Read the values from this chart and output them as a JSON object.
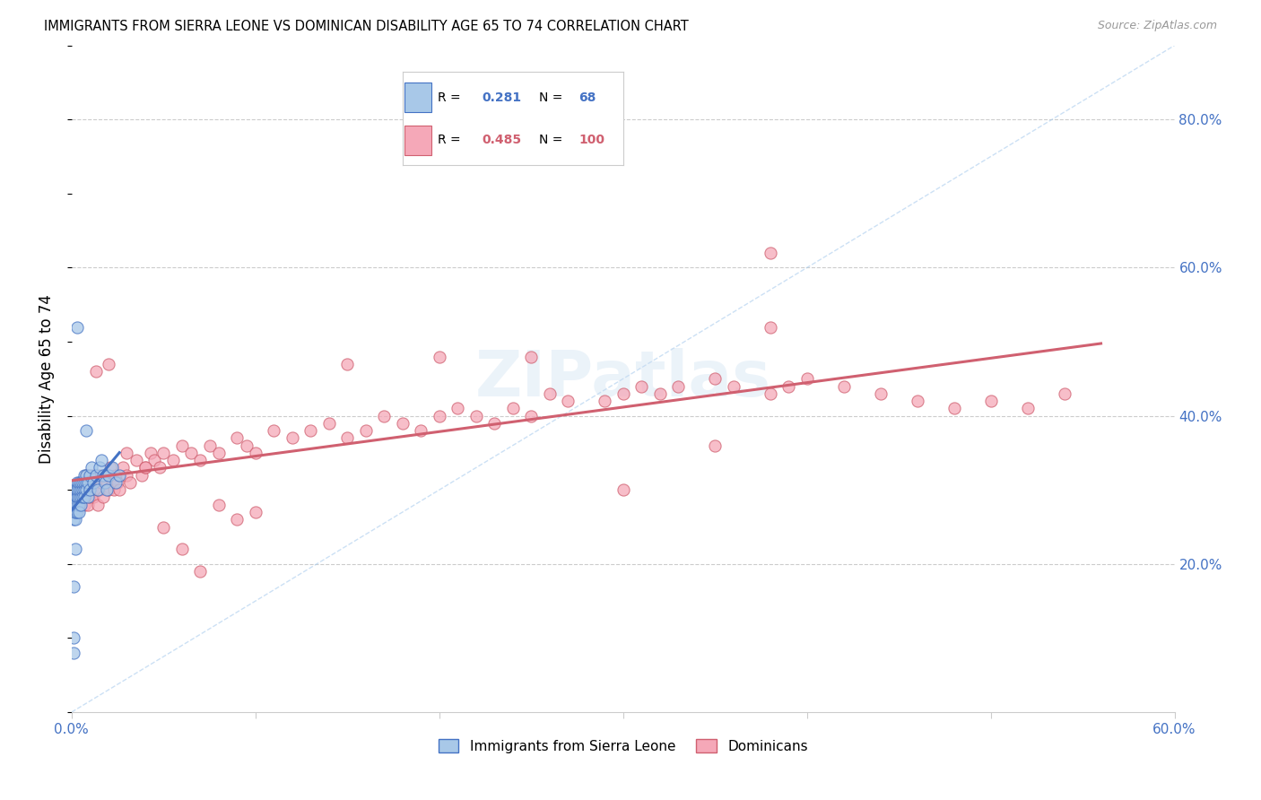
{
  "title": "IMMIGRANTS FROM SIERRA LEONE VS DOMINICAN DISABILITY AGE 65 TO 74 CORRELATION CHART",
  "source": "Source: ZipAtlas.com",
  "ylabel": "Disability Age 65 to 74",
  "xlim": [
    0.0,
    0.6
  ],
  "ylim": [
    0.0,
    0.9
  ],
  "xticks": [
    0.0,
    0.1,
    0.2,
    0.3,
    0.4,
    0.5,
    0.6
  ],
  "xticklabels": [
    "0.0%",
    "",
    "",
    "",
    "",
    "",
    "60.0%"
  ],
  "yticks_right": [
    0.2,
    0.4,
    0.6,
    0.8
  ],
  "ytick_right_labels": [
    "20.0%",
    "40.0%",
    "60.0%",
    "80.0%"
  ],
  "legend_R1": "0.281",
  "legend_N1": "68",
  "legend_R2": "0.485",
  "legend_N2": "100",
  "color_sl": "#a8c8e8",
  "color_dr": "#f5a8b8",
  "trendline_sl": "#4472c4",
  "trendline_dr": "#d06070",
  "grid_color": "#cccccc",
  "watermark": "ZIPatlas",
  "sl_x": [
    0.001,
    0.001,
    0.001,
    0.001,
    0.001,
    0.001,
    0.001,
    0.002,
    0.002,
    0.002,
    0.002,
    0.002,
    0.002,
    0.002,
    0.002,
    0.002,
    0.002,
    0.002,
    0.002,
    0.003,
    0.003,
    0.003,
    0.003,
    0.003,
    0.003,
    0.003,
    0.004,
    0.004,
    0.004,
    0.004,
    0.004,
    0.005,
    0.005,
    0.005,
    0.005,
    0.006,
    0.006,
    0.006,
    0.007,
    0.007,
    0.007,
    0.007,
    0.008,
    0.008,
    0.008,
    0.009,
    0.009,
    0.01,
    0.01,
    0.011,
    0.012,
    0.013,
    0.014,
    0.015,
    0.016,
    0.017,
    0.018,
    0.019,
    0.02,
    0.022,
    0.024,
    0.026,
    0.008,
    0.003,
    0.002,
    0.001,
    0.001,
    0.001
  ],
  "sl_y": [
    0.28,
    0.27,
    0.29,
    0.3,
    0.27,
    0.26,
    0.28,
    0.27,
    0.28,
    0.29,
    0.3,
    0.28,
    0.27,
    0.26,
    0.29,
    0.28,
    0.27,
    0.3,
    0.28,
    0.29,
    0.3,
    0.28,
    0.27,
    0.31,
    0.29,
    0.3,
    0.28,
    0.29,
    0.3,
    0.31,
    0.27,
    0.29,
    0.3,
    0.28,
    0.31,
    0.3,
    0.31,
    0.29,
    0.3,
    0.32,
    0.31,
    0.29,
    0.31,
    0.3,
    0.32,
    0.29,
    0.31,
    0.32,
    0.3,
    0.33,
    0.31,
    0.32,
    0.3,
    0.33,
    0.34,
    0.32,
    0.31,
    0.3,
    0.32,
    0.33,
    0.31,
    0.32,
    0.38,
    0.52,
    0.22,
    0.17,
    0.1,
    0.08
  ],
  "dr_x": [
    0.005,
    0.005,
    0.006,
    0.007,
    0.007,
    0.008,
    0.008,
    0.009,
    0.009,
    0.01,
    0.01,
    0.011,
    0.012,
    0.012,
    0.013,
    0.014,
    0.014,
    0.015,
    0.015,
    0.016,
    0.017,
    0.018,
    0.019,
    0.02,
    0.021,
    0.022,
    0.023,
    0.024,
    0.025,
    0.026,
    0.028,
    0.03,
    0.032,
    0.035,
    0.038,
    0.04,
    0.043,
    0.045,
    0.048,
    0.05,
    0.055,
    0.06,
    0.065,
    0.07,
    0.075,
    0.08,
    0.09,
    0.095,
    0.1,
    0.11,
    0.12,
    0.13,
    0.14,
    0.15,
    0.16,
    0.17,
    0.18,
    0.19,
    0.2,
    0.21,
    0.22,
    0.23,
    0.24,
    0.25,
    0.26,
    0.27,
    0.29,
    0.3,
    0.31,
    0.32,
    0.33,
    0.35,
    0.36,
    0.38,
    0.39,
    0.4,
    0.42,
    0.44,
    0.46,
    0.48,
    0.5,
    0.52,
    0.54,
    0.013,
    0.02,
    0.03,
    0.04,
    0.05,
    0.06,
    0.07,
    0.08,
    0.09,
    0.1,
    0.15,
    0.2,
    0.25,
    0.3,
    0.35,
    0.38,
    0.38
  ],
  "dr_y": [
    0.3,
    0.28,
    0.29,
    0.31,
    0.28,
    0.32,
    0.29,
    0.3,
    0.28,
    0.31,
    0.29,
    0.3,
    0.32,
    0.29,
    0.31,
    0.3,
    0.28,
    0.32,
    0.3,
    0.31,
    0.29,
    0.32,
    0.31,
    0.3,
    0.33,
    0.31,
    0.3,
    0.32,
    0.31,
    0.3,
    0.33,
    0.32,
    0.31,
    0.34,
    0.32,
    0.33,
    0.35,
    0.34,
    0.33,
    0.35,
    0.34,
    0.36,
    0.35,
    0.34,
    0.36,
    0.35,
    0.37,
    0.36,
    0.35,
    0.38,
    0.37,
    0.38,
    0.39,
    0.37,
    0.38,
    0.4,
    0.39,
    0.38,
    0.4,
    0.41,
    0.4,
    0.39,
    0.41,
    0.4,
    0.43,
    0.42,
    0.42,
    0.43,
    0.44,
    0.43,
    0.44,
    0.45,
    0.44,
    0.43,
    0.44,
    0.45,
    0.44,
    0.43,
    0.42,
    0.41,
    0.42,
    0.41,
    0.43,
    0.46,
    0.47,
    0.35,
    0.33,
    0.25,
    0.22,
    0.19,
    0.28,
    0.26,
    0.27,
    0.47,
    0.48,
    0.48,
    0.3,
    0.36,
    0.62,
    0.52
  ]
}
